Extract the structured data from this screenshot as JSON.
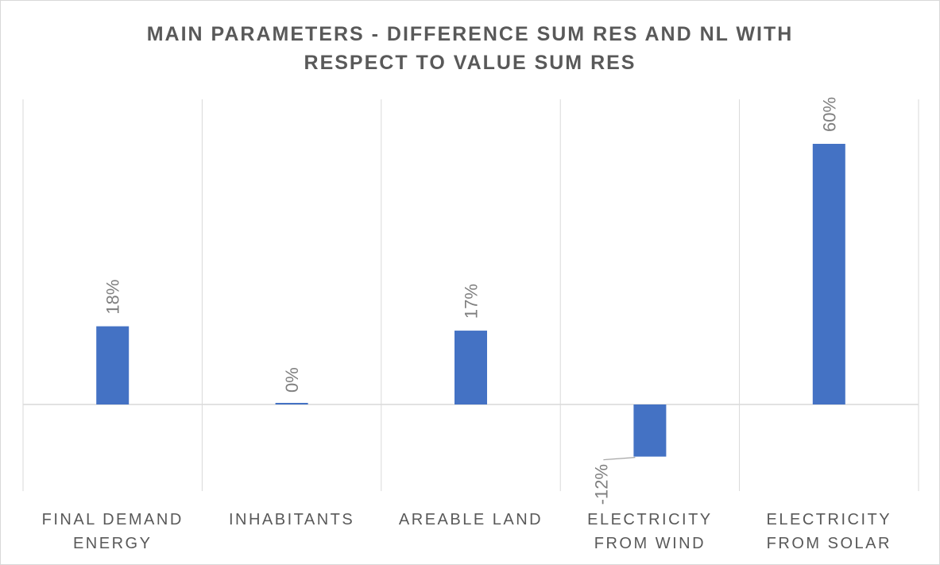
{
  "chart_data": {
    "type": "bar",
    "title_lines": [
      "MAIN PARAMETERS - DIFFERENCE SUM RES AND NL WITH",
      "RESPECT TO VALUE SUM RES"
    ],
    "categories": [
      [
        "FINAL DEMAND",
        "ENERGY"
      ],
      [
        "INHABITANTS"
      ],
      [
        "AREABLE LAND"
      ],
      [
        "ELECTRICITY",
        "FROM WIND"
      ],
      [
        "ELECTRICITY",
        "FROM SOLAR"
      ]
    ],
    "values": [
      0.18,
      0.0,
      0.17,
      -0.12,
      0.6
    ],
    "data_labels": [
      "18%",
      "0%",
      "17%",
      "-12%",
      "60%"
    ],
    "ylim": [
      -0.2,
      0.7
    ],
    "bar_color": "#4472c4",
    "grid": "vertical",
    "label_rotation": -90
  }
}
